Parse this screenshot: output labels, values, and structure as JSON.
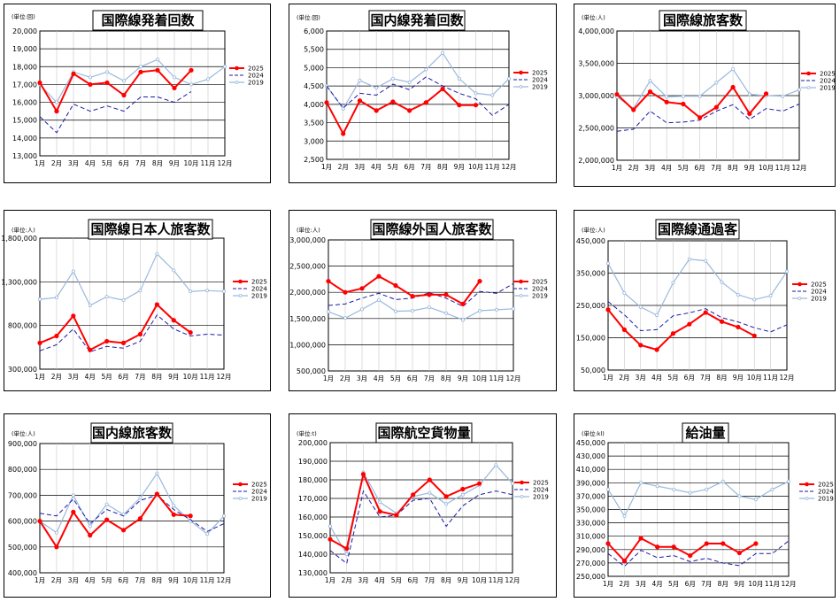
{
  "months": [
    "1月",
    "2月",
    "3月",
    "4月",
    "5月",
    "6月",
    "7月",
    "8月",
    "9月",
    "10月",
    "11月",
    "12月"
  ],
  "legend_labels": [
    "2025",
    "2024",
    "2019"
  ],
  "colors": {
    "y2025": "#ff0000",
    "y2024": "#1a1aa6",
    "y2019": "#9ab9dc"
  },
  "chart_data": [
    {
      "type": "line",
      "title": "国際線発着回数",
      "unit": "(単位:回)",
      "yticks": [
        "20,000",
        "19,000",
        "18,000",
        "17,000",
        "16,000",
        "15,000",
        "14,000",
        "13,000"
      ],
      "ylim": [
        13000,
        20000
      ],
      "series": [
        {
          "name": "2025",
          "values": [
            17100,
            15500,
            17600,
            17000,
            17100,
            16400,
            17700,
            17800,
            16800,
            17800,
            null,
            null
          ]
        },
        {
          "name": "2024",
          "values": [
            15200,
            14300,
            15900,
            15500,
            15800,
            15500,
            16300,
            16300,
            16000,
            16600,
            null,
            17000
          ]
        },
        {
          "name": "2019",
          "values": [
            17000,
            16000,
            17700,
            17400,
            17700,
            17200,
            18000,
            18400,
            17400,
            17000,
            17300,
            18000
          ]
        }
      ]
    },
    {
      "type": "line",
      "title": "国内線発着回数",
      "unit": "(単位:回)",
      "yticks": [
        "6,000",
        "5,500",
        "5,000",
        "4,500",
        "4,000",
        "3,500",
        "3,000",
        "2,500"
      ],
      "ylim": [
        2500,
        6000
      ],
      "series": [
        {
          "name": "2025",
          "values": [
            4050,
            3200,
            4100,
            3830,
            4070,
            3830,
            4050,
            4420,
            3980,
            3980,
            null,
            null
          ]
        },
        {
          "name": "2024",
          "values": [
            4500,
            3900,
            4300,
            4250,
            4550,
            4400,
            4750,
            4500,
            4300,
            4150,
            3700,
            4000
          ]
        },
        {
          "name": "2019",
          "values": [
            4500,
            3880,
            4650,
            4450,
            4700,
            4600,
            4950,
            5400,
            4700,
            4300,
            4250,
            4700
          ]
        }
      ]
    },
    {
      "type": "line",
      "title": "国際線旅客数",
      "unit": "(単位:人)",
      "yticks": [
        "4,000,000",
        "3,500,000",
        "3,000,000",
        "2,500,000",
        "2,000,000"
      ],
      "ylim": [
        2000000,
        4000000
      ],
      "series": [
        {
          "name": "2025",
          "values": [
            3020000,
            2780000,
            3060000,
            2900000,
            2870000,
            2660000,
            2820000,
            3130000,
            2720000,
            3030000,
            null,
            null
          ]
        },
        {
          "name": "2024",
          "values": [
            2450000,
            2480000,
            2760000,
            2580000,
            2590000,
            2620000,
            2760000,
            2860000,
            2630000,
            2800000,
            2760000,
            2870000
          ]
        },
        {
          "name": "2019",
          "values": [
            2980000,
            2800000,
            3230000,
            2980000,
            2990000,
            2990000,
            3200000,
            3410000,
            3020000,
            3000000,
            2990000,
            3090000
          ]
        }
      ]
    },
    {
      "type": "line",
      "title": "国際線日本人旅客数",
      "unit": "(単位:人)",
      "yticks": [
        "1,800,000",
        "1,300,000",
        "800,000",
        "300,000"
      ],
      "ylim": [
        300000,
        1800000
      ],
      "series": [
        {
          "name": "2025",
          "values": [
            600000,
            680000,
            910000,
            520000,
            620000,
            600000,
            700000,
            1040000,
            860000,
            720000,
            null,
            null
          ]
        },
        {
          "name": "2024",
          "values": [
            510000,
            580000,
            760000,
            500000,
            560000,
            540000,
            620000,
            920000,
            760000,
            680000,
            700000,
            690000
          ]
        },
        {
          "name": "2019",
          "values": [
            1100000,
            1120000,
            1420000,
            1030000,
            1130000,
            1090000,
            1200000,
            1620000,
            1430000,
            1190000,
            1200000,
            1190000
          ]
        }
      ]
    },
    {
      "type": "line",
      "title": "国際線外国人旅客数",
      "unit": "(単位:人)",
      "yticks": [
        "3,000,000",
        "2,500,000",
        "2,000,000",
        "1,500,000",
        "1,000,000",
        "500,000"
      ],
      "ylim": [
        300000,
        3000000
      ],
      "series": [
        {
          "name": "2025",
          "values": [
            2150000,
            1920000,
            2000000,
            2250000,
            2060000,
            1840000,
            1870000,
            1870000,
            1680000,
            2150000,
            null,
            null
          ]
        },
        {
          "name": "2024",
          "values": [
            1650000,
            1680000,
            1800000,
            1900000,
            1770000,
            1800000,
            1910000,
            1800000,
            1630000,
            1940000,
            1900000,
            2100000
          ]
        },
        {
          "name": "2019",
          "values": [
            1520000,
            1390000,
            1570000,
            1760000,
            1530000,
            1540000,
            1610000,
            1490000,
            1350000,
            1540000,
            1560000,
            1580000
          ]
        }
      ]
    },
    {
      "type": "line",
      "title": "国際線通過客",
      "unit": "(単位:人)",
      "yticks": [
        "450,000",
        "350,000",
        "250,000",
        "150,000",
        "50,000"
      ],
      "ylim": [
        50000,
        450000
      ],
      "series": [
        {
          "name": "2025",
          "values": [
            237000,
            175000,
            127000,
            113000,
            163000,
            192000,
            228000,
            200000,
            183000,
            156000,
            null,
            null
          ]
        },
        {
          "name": "2024",
          "values": [
            262000,
            221000,
            172000,
            175000,
            218000,
            227000,
            240000,
            212000,
            199000,
            181000,
            168000,
            190000
          ]
        },
        {
          "name": "2019",
          "values": [
            380000,
            288000,
            245000,
            220000,
            320000,
            393000,
            388000,
            322000,
            283000,
            268000,
            280000,
            355000
          ]
        }
      ]
    },
    {
      "type": "line",
      "title": "国内線旅客数",
      "unit": "(単位:人)",
      "yticks": [
        "900,000",
        "800,000",
        "700,000",
        "600,000",
        "500,000",
        "400,000"
      ],
      "ylim": [
        400000,
        900000
      ],
      "series": [
        {
          "name": "2025",
          "values": [
            600000,
            500000,
            635000,
            545000,
            605000,
            565000,
            610000,
            705000,
            625000,
            620000,
            null,
            null
          ]
        },
        {
          "name": "2024",
          "values": [
            630000,
            620000,
            685000,
            590000,
            645000,
            620000,
            680000,
            700000,
            645000,
            605000,
            560000,
            590000
          ]
        },
        {
          "name": "2019",
          "values": [
            600000,
            555000,
            700000,
            580000,
            665000,
            625000,
            690000,
            785000,
            660000,
            600000,
            550000,
            620000
          ]
        }
      ]
    },
    {
      "type": "line",
      "title": "国際航空貨物量",
      "unit": "(単位:t)",
      "yticks": [
        "200,000",
        "190,000",
        "180,000",
        "170,000",
        "160,000",
        "150,000",
        "140,000",
        "130,000"
      ],
      "ylim": [
        130000,
        200000
      ],
      "series": [
        {
          "name": "2025",
          "values": [
            148000,
            143000,
            183000,
            163000,
            161000,
            172000,
            180000,
            171000,
            175000,
            178000,
            null,
            null
          ]
        },
        {
          "name": "2024",
          "values": [
            142000,
            135000,
            174000,
            160000,
            161000,
            169000,
            170000,
            155000,
            166000,
            172000,
            174000,
            172000
          ]
        },
        {
          "name": "2019",
          "values": [
            155000,
            140000,
            184000,
            168000,
            162000,
            171000,
            173000,
            167000,
            172000,
            177000,
            188000,
            178000
          ]
        }
      ]
    },
    {
      "type": "line",
      "title": "給油量",
      "unit": "(単位:kl)",
      "yticks": [
        "450,000",
        "430,000",
        "410,000",
        "390,000",
        "370,000",
        "350,000",
        "330,000",
        "310,000",
        "290,000",
        "270,000",
        "250,000"
      ],
      "ylim": [
        250000,
        450000
      ],
      "series": [
        {
          "name": "2025",
          "values": [
            299000,
            273000,
            307000,
            294000,
            294000,
            281000,
            299000,
            299000,
            285000,
            299000,
            null,
            null
          ]
        },
        {
          "name": "2024",
          "values": [
            284000,
            265000,
            289000,
            278000,
            281000,
            272000,
            277000,
            270000,
            266000,
            284000,
            284000,
            303000
          ]
        },
        {
          "name": "2019",
          "values": [
            380000,
            340000,
            390000,
            385000,
            380000,
            375000,
            380000,
            392000,
            370000,
            365000,
            380000,
            392000
          ]
        }
      ]
    }
  ]
}
